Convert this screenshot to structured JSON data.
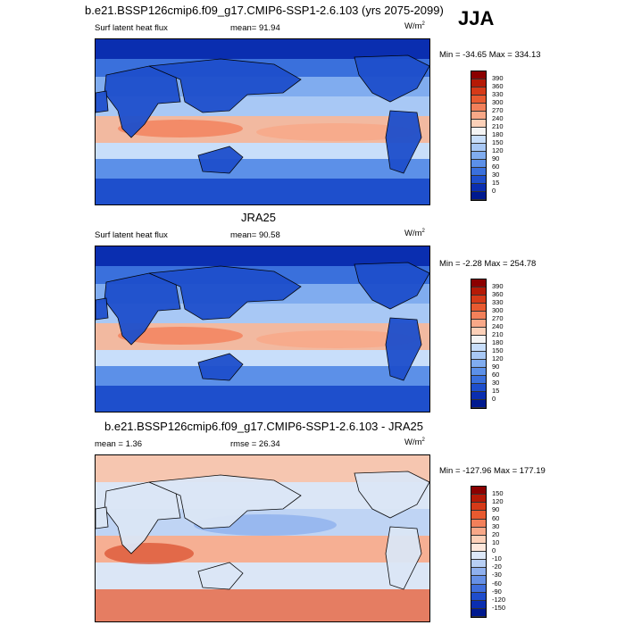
{
  "season": "JJA",
  "panels": [
    {
      "title": "b.e21.BSSP126cmip6.f09_g17.CMIP6-SSP1-2.6.103 (yrs 2075-2099)",
      "left_label": "Surf latent heat flux",
      "center_label": "mean=  91.94",
      "units": "W/m",
      "units_sup": "2",
      "minmax": "Min = -34.65 Max = 334.13",
      "colorbar_labels": [
        "390",
        "360",
        "330",
        "300",
        "270",
        "240",
        "210",
        "180",
        "150",
        "120",
        "90",
        "60",
        "30",
        "15",
        "0"
      ],
      "colorbar_colors": [
        "#8b0000",
        "#b51a06",
        "#d63a18",
        "#e85a30",
        "#f2805a",
        "#f8a888",
        "#fcd0b8",
        "#f4f4f4",
        "#c8defa",
        "#a8c8f5",
        "#80acef",
        "#5c90e8",
        "#3a70dc",
        "#1e4fcc",
        "#0a2eb0",
        "#001a8f"
      ],
      "fill_mode": "abs"
    },
    {
      "title": "JRA25",
      "left_label": "Surf latent heat flux",
      "center_label": "mean=  90.58",
      "units": "W/m",
      "units_sup": "2",
      "minmax": "Min =  -2.28 Max = 254.78",
      "colorbar_labels": [
        "390",
        "360",
        "330",
        "300",
        "270",
        "240",
        "210",
        "180",
        "150",
        "120",
        "90",
        "60",
        "30",
        "15",
        "0"
      ],
      "colorbar_colors": [
        "#8b0000",
        "#b51a06",
        "#d63a18",
        "#e85a30",
        "#f2805a",
        "#f8a888",
        "#fcd0b8",
        "#f4f4f4",
        "#c8defa",
        "#a8c8f5",
        "#80acef",
        "#5c90e8",
        "#3a70dc",
        "#1e4fcc",
        "#0a2eb0",
        "#001a8f"
      ],
      "fill_mode": "abs"
    },
    {
      "title": "b.e21.BSSP126cmip6.f09_g17.CMIP6-SSP1-2.6.103 - JRA25",
      "left_label": "mean =   1.36",
      "center_label": "rmse =  26.34",
      "units": "W/m",
      "units_sup": "2",
      "minmax": "Min = -127.96 Max = 177.19",
      "colorbar_labels": [
        "150",
        "120",
        "90",
        "60",
        "30",
        "20",
        "10",
        "0",
        "-10",
        "-20",
        "-30",
        "-60",
        "-90",
        "-120",
        "-150"
      ],
      "colorbar_colors": [
        "#8b0000",
        "#b51a06",
        "#d63a18",
        "#e85a30",
        "#f2805a",
        "#f8a888",
        "#fcd0b8",
        "#fde8dc",
        "#dde8f8",
        "#b8cff4",
        "#8fb0ee",
        "#6690e6",
        "#3f6edc",
        "#1f4dcc",
        "#0a2eb0",
        "#001a8f"
      ],
      "fill_mode": "diff"
    }
  ],
  "chart_data": [
    {
      "type": "heatmap",
      "title": "b.e21.BSSP126cmip6.f09_g17.CMIP6-SSP1-2.6.103 (yrs 2075-2099)",
      "variable": "Surf latent heat flux",
      "units": "W/m2",
      "mean": 91.94,
      "min": -34.65,
      "max": 334.13,
      "levels": [
        0,
        15,
        30,
        60,
        90,
        120,
        150,
        180,
        210,
        240,
        270,
        300,
        330,
        360,
        390
      ]
    },
    {
      "type": "heatmap",
      "title": "JRA25",
      "variable": "Surf latent heat flux",
      "units": "W/m2",
      "mean": 90.58,
      "min": -2.28,
      "max": 254.78,
      "levels": [
        0,
        15,
        30,
        60,
        90,
        120,
        150,
        180,
        210,
        240,
        270,
        300,
        330,
        360,
        390
      ]
    },
    {
      "type": "heatmap",
      "title": "b.e21.BSSP126cmip6.f09_g17.CMIP6-SSP1-2.6.103 - JRA25",
      "units": "W/m2",
      "mean": 1.36,
      "rmse": 26.34,
      "min": -127.96,
      "max": 177.19,
      "levels": [
        -150,
        -120,
        -90,
        -60,
        -30,
        -20,
        -10,
        0,
        10,
        20,
        30,
        60,
        90,
        120,
        150
      ]
    }
  ]
}
